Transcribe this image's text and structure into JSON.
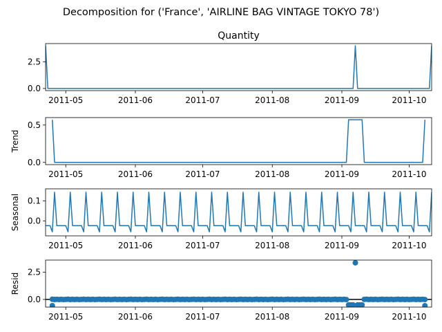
{
  "chart_data": {
    "type": "line",
    "suptitle": "Decomposition for ('France', 'AIRLINE BAG VINTAGE TOKYO 78')",
    "x_tick_labels": [
      "2011-05",
      "2011-06",
      "2011-07",
      "2011-08",
      "2011-09",
      "2011-10"
    ],
    "x_range_days": [
      0,
      172
    ],
    "x_tick_days": [
      9,
      40,
      70,
      101,
      132,
      162
    ],
    "line_color": "#1f77b4",
    "panels": [
      {
        "name": "observed",
        "title": "Quantity",
        "ylabel": "",
        "kind": "line",
        "ylim": [
          -0.2,
          4.2
        ],
        "yticks": [
          0.0,
          2.5
        ],
        "ytick_labels": [
          "0.0",
          "2.5"
        ],
        "points": [
          [
            0,
            4
          ],
          [
            1,
            0
          ],
          [
            137,
            0
          ],
          [
            138,
            4
          ],
          [
            139,
            0
          ],
          [
            171,
            0
          ],
          [
            172,
            4
          ]
        ]
      },
      {
        "name": "trend",
        "title": "",
        "ylabel": "Trend",
        "kind": "line",
        "ylim": [
          -0.03,
          0.6
        ],
        "yticks": [
          0.0,
          0.5
        ],
        "ytick_labels": [
          "0.0",
          "0.5"
        ],
        "points": [
          [
            3,
            0.571
          ],
          [
            4,
            0
          ],
          [
            134,
            0
          ],
          [
            135,
            0.571
          ],
          [
            141,
            0.571
          ],
          [
            142,
            0
          ],
          [
            168,
            0
          ],
          [
            169,
            0.571
          ]
        ]
      },
      {
        "name": "seasonal",
        "title": "",
        "ylabel": "Seasonal",
        "kind": "line",
        "period": 7,
        "ylim": [
          -0.075,
          0.16
        ],
        "yticks": [
          0.0,
          0.1
        ],
        "ytick_labels": [
          "0.0",
          "0.1"
        ],
        "pattern": [
          0.143,
          -0.024,
          -0.024,
          -0.024,
          -0.024,
          -0.024,
          -0.055
        ],
        "pattern_start_day": 4
      },
      {
        "name": "resid",
        "title": "",
        "ylabel": "Resid",
        "kind": "scatter",
        "zero_line": true,
        "ylim": [
          -0.7,
          3.6
        ],
        "yticks": [
          0.0,
          2.5
        ],
        "ytick_labels": [
          "0.0",
          "2.5"
        ],
        "x_start": 3,
        "x_end": 169,
        "base_points": [
          [
            3,
            -0.57
          ],
          [
            169,
            -0.57
          ]
        ],
        "dip_range": [
          135,
          141
        ],
        "dip_value": -0.5,
        "spike": [
          138,
          3.35
        ],
        "seasonal_pattern": [
          0.02,
          -0.005,
          0.01,
          -0.005,
          0.015,
          -0.01,
          0.005
        ]
      }
    ]
  }
}
